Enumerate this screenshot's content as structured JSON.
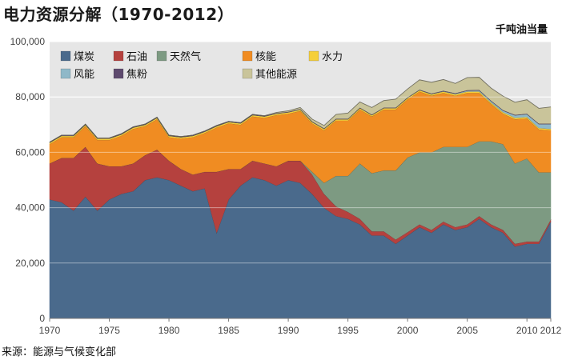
{
  "title": "电力资源分解（1970-2012）",
  "unit": "千吨油当量",
  "source": "来源：能源与气候变化部",
  "chart_data": {
    "type": "area",
    "stacked": true,
    "x": [
      1970,
      1971,
      1972,
      1973,
      1974,
      1975,
      1976,
      1977,
      1978,
      1979,
      1980,
      1981,
      1982,
      1983,
      1984,
      1985,
      1986,
      1987,
      1988,
      1989,
      1990,
      1991,
      1992,
      1993,
      1994,
      1995,
      1996,
      1997,
      1998,
      1999,
      2000,
      2001,
      2002,
      2003,
      2004,
      2005,
      2006,
      2007,
      2008,
      2009,
      2010,
      2011,
      2012
    ],
    "xlim": [
      1970,
      2012
    ],
    "ylim": [
      0,
      100000
    ],
    "x_ticks": [
      "1970",
      "1975",
      "1980",
      "1985",
      "1990",
      "1995",
      "2000",
      "2005",
      "2010",
      "2012"
    ],
    "y_ticks": [
      "0",
      "20,000",
      "40,000",
      "60,000",
      "80,000",
      "100,000"
    ],
    "legend_placement": "top-left",
    "series": [
      {
        "name": "煤炭",
        "color": "#4a6a8c",
        "values": [
          43000,
          42000,
          39000,
          44000,
          39000,
          43000,
          45000,
          46000,
          50000,
          51000,
          50000,
          48000,
          46000,
          47000,
          31000,
          43000,
          48000,
          51000,
          50000,
          48000,
          50000,
          49000,
          45000,
          40000,
          37000,
          36000,
          34000,
          30000,
          30000,
          27000,
          30000,
          33000,
          31000,
          34000,
          32000,
          33000,
          36000,
          33000,
          31000,
          26000,
          27000,
          27000,
          35000
        ]
      },
      {
        "name": "石油",
        "color": "#b5413e",
        "values": [
          13000,
          16000,
          19000,
          18000,
          17000,
          12000,
          10000,
          10000,
          9000,
          10000,
          7000,
          6000,
          6000,
          6000,
          22000,
          11000,
          6000,
          6000,
          6000,
          7000,
          7000,
          8000,
          7000,
          5000,
          3500,
          2500,
          2000,
          1500,
          1500,
          1500,
          1200,
          1000,
          1000,
          1000,
          1000,
          1000,
          1000,
          1000,
          1000,
          1000,
          800,
          800,
          800
        ]
      },
      {
        "name": "天然气",
        "color": "#7d9a82",
        "values": [
          0,
          0,
          0,
          0,
          0,
          0,
          0,
          0,
          0,
          0,
          0,
          0,
          0,
          0,
          0,
          0,
          0,
          0,
          0,
          0,
          0,
          0,
          1000,
          4000,
          11000,
          13000,
          20000,
          21000,
          22000,
          25000,
          27000,
          26000,
          28000,
          27000,
          29000,
          28000,
          27000,
          30000,
          31000,
          29000,
          30000,
          25000,
          17000
        ]
      },
      {
        "name": "核能",
        "color": "#f08c22",
        "values": [
          7000,
          7500,
          7500,
          7500,
          8500,
          9500,
          11000,
          12500,
          10500,
          11000,
          8500,
          11000,
          13500,
          14000,
          16000,
          16500,
          16000,
          16000,
          16500,
          18500,
          17000,
          18000,
          17500,
          19000,
          20000,
          20000,
          19500,
          20500,
          22000,
          22000,
          21000,
          22000,
          20500,
          19500,
          18500,
          19500,
          17500,
          13500,
          11000,
          16000,
          14500,
          15500,
          15200
        ]
      },
      {
        "name": "水力",
        "color": "#f5cf3a",
        "values": [
          500,
          500,
          500,
          500,
          500,
          500,
          500,
          500,
          500,
          500,
          500,
          500,
          500,
          500,
          500,
          500,
          500,
          500,
          500,
          500,
          500,
          500,
          500,
          500,
          500,
          500,
          500,
          500,
          500,
          500,
          500,
          500,
          500,
          500,
          500,
          500,
          500,
          500,
          500,
          500,
          500,
          500,
          500
        ]
      },
      {
        "name": "风能",
        "color": "#8fb8c8",
        "values": [
          0,
          0,
          0,
          0,
          0,
          0,
          0,
          0,
          0,
          0,
          0,
          0,
          0,
          0,
          0,
          0,
          0,
          0,
          0,
          0,
          0,
          0,
          0,
          0,
          0,
          0,
          0,
          0,
          0,
          0,
          0,
          0,
          100,
          100,
          200,
          300,
          400,
          500,
          600,
          900,
          1000,
          1400,
          1700
        ]
      },
      {
        "name": "焦粉",
        "color": "#5e4a6e",
        "values": [
          200,
          200,
          200,
          200,
          200,
          200,
          200,
          200,
          200,
          200,
          200,
          200,
          200,
          200,
          200,
          200,
          200,
          200,
          200,
          200,
          200,
          200,
          200,
          200,
          200,
          200,
          200,
          200,
          200,
          200,
          200,
          200,
          200,
          200,
          200,
          200,
          200,
          200,
          200,
          200,
          200,
          200,
          200
        ]
      },
      {
        "name": "其他能源",
        "color": "#c9c49a",
        "values": [
          0,
          0,
          0,
          0,
          0,
          0,
          0,
          0,
          0,
          0,
          0,
          0,
          0,
          0,
          0,
          0,
          0,
          0,
          0,
          200,
          300,
          500,
          800,
          1000,
          1500,
          2000,
          2000,
          2500,
          2500,
          3000,
          3000,
          3500,
          4000,
          4000,
          3500,
          4500,
          4500,
          4500,
          5000,
          4500,
          5000,
          5500,
          6000
        ]
      }
    ]
  }
}
